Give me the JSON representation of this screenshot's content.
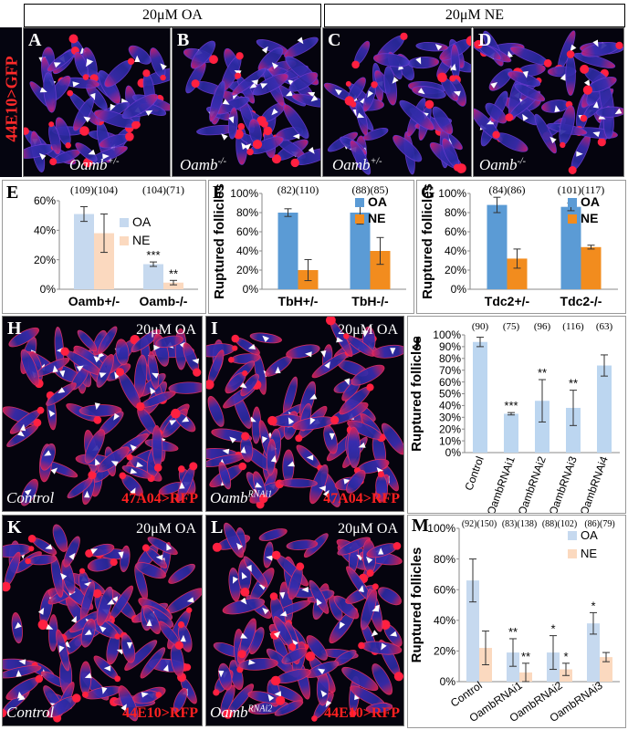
{
  "header": {
    "oa": "20μM OA",
    "ne": "20μM NE"
  },
  "row1_side_label": "44E10>GFP",
  "panels": {
    "A": {
      "letter": "A",
      "genotype": "Oamb",
      "sup": "+/-"
    },
    "B": {
      "letter": "B",
      "genotype": "Oamb",
      "sup": "-/-"
    },
    "C": {
      "letter": "C",
      "genotype": "Oamb",
      "sup": "+/-"
    },
    "D": {
      "letter": "D",
      "genotype": "Oamb",
      "sup": "-/-"
    },
    "H": {
      "letter": "H",
      "treatment": "20μM OA",
      "genotype": "Control",
      "driver": "47A04>RFP"
    },
    "I": {
      "letter": "I",
      "treatment": "20μM OA",
      "genotype": "Oamb",
      "sup": "RNAi1",
      "driver": "47A04>RFP"
    },
    "K": {
      "letter": "K",
      "treatment": "20μM OA",
      "genotype": "Control",
      "driver": "44E10>RFP"
    },
    "L": {
      "letter": "L",
      "treatment": "20μM OA",
      "genotype": "Oamb",
      "sup": "RNAi2",
      "driver": "44E10>RFP"
    }
  },
  "chart_data": [
    {
      "panel": "E",
      "type": "bar",
      "ylabel": "Ruptured follicles",
      "ylim": [
        0,
        60
      ],
      "yticks": [
        "0%",
        "20%",
        "40%",
        "60%"
      ],
      "categories": [
        "Oamb+/-",
        "Oamb-/-"
      ],
      "n_labels": [
        "(109)(104)",
        "(104)(71)"
      ],
      "series": [
        {
          "name": "OA",
          "values": [
            51,
            17
          ],
          "errors": [
            5,
            1.5
          ],
          "sig": [
            "",
            "***"
          ]
        },
        {
          "name": "NE",
          "values": [
            38,
            4.5
          ],
          "errors": [
            13,
            1.5
          ],
          "sig": [
            "",
            "**"
          ]
        }
      ],
      "colors": [
        "#c6d9ef",
        "#fbd9bf"
      ]
    },
    {
      "panel": "F",
      "type": "bar",
      "ylabel": "Ruptured follicles",
      "ylim": [
        0,
        100
      ],
      "yticks": [
        "0%",
        "20%",
        "40%",
        "60%",
        "80%",
        "100%"
      ],
      "categories": [
        "TbH+/-",
        "TbH-/-"
      ],
      "n_labels": [
        "(82)(110)",
        "(88)(85)"
      ],
      "series": [
        {
          "name": "OA",
          "values": [
            80,
            80
          ],
          "errors": [
            4,
            12
          ],
          "sig": [
            "",
            ""
          ]
        },
        {
          "name": "NE",
          "values": [
            20,
            40
          ],
          "errors": [
            11,
            14
          ],
          "sig": [
            "",
            ""
          ]
        }
      ],
      "colors": [
        "#5b9bd5",
        "#f28c1e"
      ]
    },
    {
      "panel": "G",
      "type": "bar",
      "ylabel": "Ruptured follicles",
      "ylim": [
        0,
        100
      ],
      "yticks": [
        "0%",
        "20%",
        "40%",
        "60%",
        "80%",
        "100%"
      ],
      "categories": [
        "Tdc2+/-",
        "Tdc2-/-"
      ],
      "n_labels": [
        "(84)(86)",
        "(101)(117)"
      ],
      "series": [
        {
          "name": "OA",
          "values": [
            88,
            86
          ],
          "errors": [
            8,
            4
          ],
          "sig": [
            "",
            ""
          ]
        },
        {
          "name": "NE",
          "values": [
            32,
            44
          ],
          "errors": [
            10,
            2
          ],
          "sig": [
            "",
            ""
          ]
        }
      ],
      "colors": [
        "#5b9bd5",
        "#f28c1e"
      ]
    },
    {
      "panel": "J",
      "type": "bar",
      "ylabel": "Ruptured follicles",
      "ylim": [
        0,
        100
      ],
      "yticks": [
        "0%",
        "10%",
        "20%",
        "30%",
        "40%",
        "50%",
        "60%",
        "70%",
        "80%",
        "90%",
        "100%"
      ],
      "categories": [
        "Control",
        "OambRNAi1",
        "OambRNAi2",
        "OambRNAi3",
        "OambRNAi4"
      ],
      "n_labels": [
        "(90)",
        "(75)",
        "(96)",
        "(116)",
        "(63)"
      ],
      "series": [
        {
          "name": "",
          "values": [
            94,
            33,
            44,
            38,
            74
          ],
          "errors": [
            4,
            1,
            18,
            15,
            9
          ],
          "sig": [
            "",
            "***",
            "**",
            "**",
            ""
          ]
        }
      ],
      "colors": [
        "#bcd6f0"
      ]
    },
    {
      "panel": "M",
      "type": "bar",
      "ylabel": "Ruptured follicles",
      "ylim": [
        0,
        100
      ],
      "yticks": [
        "0%",
        "20%",
        "40%",
        "60%",
        "80%",
        "100%"
      ],
      "categories": [
        "Control",
        "OambRNAi1",
        "OambRNAi2",
        "OambRNAi3"
      ],
      "n_labels": [
        "(92)(150)",
        "(83)(138)",
        "(88)(102)",
        "(86)(79)"
      ],
      "series": [
        {
          "name": "OA",
          "values": [
            66,
            19,
            19,
            38
          ],
          "errors": [
            14,
            9,
            11,
            7
          ],
          "sig": [
            "",
            "**",
            "*",
            "*"
          ]
        },
        {
          "name": "NE",
          "values": [
            22,
            6,
            8,
            16
          ],
          "errors": [
            11,
            6,
            4,
            3
          ],
          "sig": [
            "",
            "**",
            "*",
            ""
          ]
        }
      ],
      "colors": [
        "#c6d9ef",
        "#fbd9bf"
      ]
    }
  ]
}
